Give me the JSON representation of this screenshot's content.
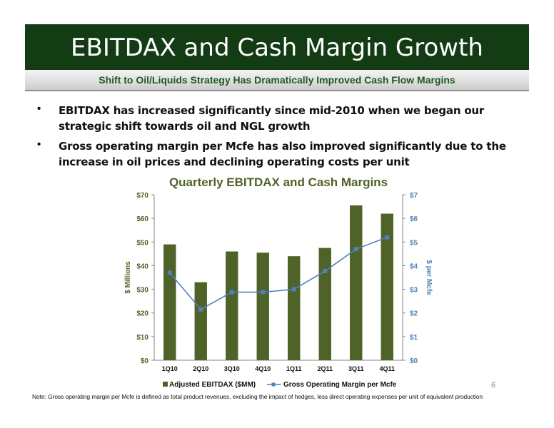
{
  "slide": {
    "title": "EBITDAX and Cash Margin Growth",
    "subtitle": "Shift to Oil/Liquids Strategy Has Dramatically Improved Cash Flow Margins",
    "bullets": [
      "EBITDAX has increased significantly since mid-2010 when we began our strategic shift towards oil and NGL growth",
      "Gross operating margin per Mcfe has also improved significantly due to the increase in oil prices and declining operating costs per unit"
    ],
    "page_number": "6",
    "footnote": "Note: Gross operating margin per Mcfe is defined as total product revenues, excluding the impact of hedges, less direct operating expenses per unit of equivalent production"
  },
  "colors": {
    "title_bar": "#133b14",
    "bar_fill": "#4f6228",
    "line": "#4f81bd",
    "chart_title": "#4f6228",
    "left_axis_text": "#4f6228",
    "right_axis_text": "#4f81bd"
  },
  "chart_data": {
    "type": "bar",
    "title": "Quarterly EBITDAX and Cash Margins",
    "categories": [
      "1Q10",
      "2Q10",
      "3Q10",
      "4Q10",
      "1Q11",
      "2Q11",
      "3Q11",
      "4Q11"
    ],
    "ylabel": "$ Millions",
    "y2label": "$ per Mcfe",
    "ylim": [
      0,
      70
    ],
    "y2lim": [
      0,
      7
    ],
    "yticks": [
      "$0",
      "$10",
      "$20",
      "$30",
      "$40",
      "$50",
      "$60",
      "$70"
    ],
    "y2ticks": [
      "$0",
      "$1",
      "$2",
      "$3",
      "$4",
      "$5",
      "$6",
      "$7"
    ],
    "grid": false,
    "legend_position": "bottom",
    "series": [
      {
        "name": "Adjusted EBITDAX ($MM)",
        "type": "bar",
        "axis": "left",
        "values": [
          49,
          33,
          46,
          45.5,
          44,
          47.5,
          65.5,
          62
        ]
      },
      {
        "name": "Gross Operating Margin per Mcfe",
        "type": "line",
        "axis": "right",
        "marker": "square",
        "values": [
          3.7,
          2.15,
          2.88,
          2.88,
          3.0,
          3.77,
          4.7,
          5.2
        ]
      }
    ]
  }
}
